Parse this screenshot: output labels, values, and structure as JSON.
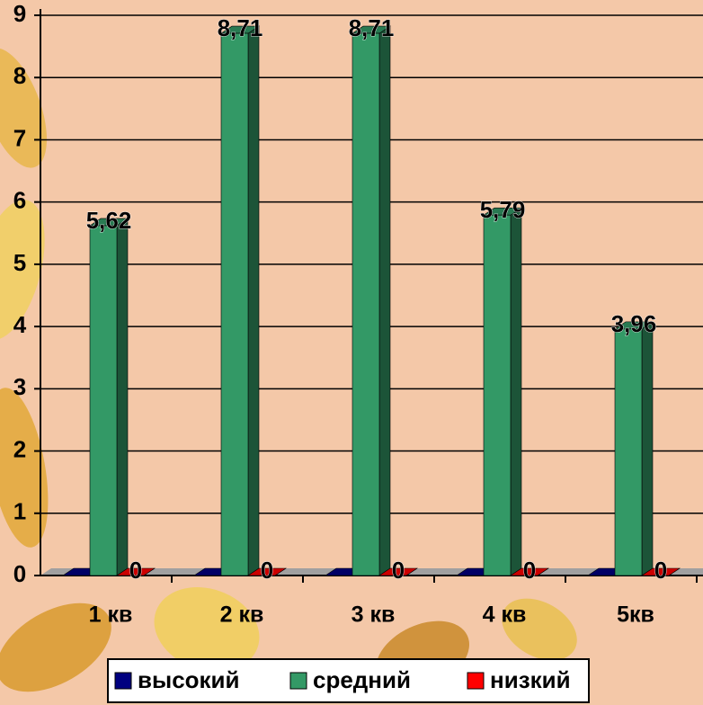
{
  "chart_data": {
    "type": "bar3d",
    "categories": [
      "1 кв",
      "2 кв",
      "3 кв",
      "4 кв",
      "5кв"
    ],
    "series": [
      {
        "name": "высокий",
        "color": "#000080",
        "values": [
          0,
          0,
          0,
          0,
          0
        ]
      },
      {
        "name": "средний",
        "color": "#339966",
        "values": [
          5.62,
          8.71,
          8.71,
          5.79,
          3.96
        ],
        "value_labels": [
          "5,62",
          "8,71",
          "8,71",
          "5,79",
          "3,96"
        ]
      },
      {
        "name": "низкий",
        "color": "#ff0000",
        "values": [
          0,
          0,
          0,
          0,
          0
        ]
      }
    ],
    "ylim": [
      0,
      9
    ],
    "yticks": [
      0,
      1,
      2,
      3,
      4,
      5,
      6,
      7,
      8,
      9
    ],
    "grid": true,
    "legend": "bottom"
  }
}
